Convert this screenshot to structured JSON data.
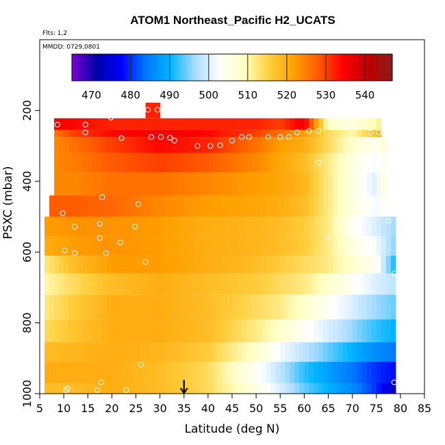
{
  "chart_data": {
    "type": "heatmap",
    "title": "ATOM1 Northeast_Pacific H2_UCATS",
    "flights_note": "Flts: 1,2",
    "date_note": "MMDD: 0729,0801",
    "xlabel": "Latitude (deg N)",
    "ylabel": "PSXC (mbar)",
    "xlim": [
      5,
      85
    ],
    "ylim": [
      1000,
      0
    ],
    "y_reversed": true,
    "xticks": [
      5,
      10,
      15,
      20,
      25,
      30,
      35,
      40,
      45,
      50,
      55,
      60,
      65,
      70,
      75,
      80,
      85
    ],
    "yticks": [
      200,
      400,
      600,
      800,
      1000
    ],
    "colorbar": {
      "range": [
        465,
        547
      ],
      "ticks": [
        470,
        480,
        490,
        500,
        510,
        520,
        530,
        540
      ],
      "colors": [
        "#7b00d4",
        "#0000a8",
        "#0000ff",
        "#0078ff",
        "#00b4ff",
        "#aadcff",
        "#ffffff",
        "#ffffc0",
        "#ffd040",
        "#ffa000",
        "#ff5a00",
        "#ff0000",
        "#c00000",
        "#8b1a1a"
      ]
    },
    "arrow_latitude": 35,
    "bands": [
      {
        "p": [
          1000,
          970
        ],
        "lat": [
          6,
          12,
          20,
          30,
          40,
          50,
          55,
          60,
          65,
          70,
          75,
          79
        ],
        "v": [
          518,
          518,
          520,
          518,
          514,
          506,
          500,
          494,
          490,
          486,
          480,
          472
        ]
      },
      {
        "p": [
          970,
          910
        ],
        "lat": [
          6,
          12,
          20,
          30,
          40,
          50,
          55,
          60,
          65,
          70,
          75,
          79
        ],
        "v": [
          520,
          520,
          520,
          518,
          514,
          504,
          498,
          492,
          488,
          484,
          480,
          478
        ]
      },
      {
        "p": [
          910,
          855
        ],
        "lat": [
          6,
          12,
          20,
          30,
          40,
          50,
          55,
          60,
          65,
          70,
          75,
          79
        ],
        "v": [
          518,
          519,
          520,
          519,
          516,
          508,
          502,
          498,
          494,
          490,
          486,
          484
        ]
      },
      {
        "p": [
          855,
          790
        ],
        "lat": [
          6,
          12,
          20,
          30,
          40,
          50,
          55,
          60,
          65,
          70,
          75,
          79
        ],
        "v": [
          514,
          517,
          520,
          520,
          518,
          512,
          508,
          504,
          500,
          496,
          492,
          490
        ]
      },
      {
        "p": [
          790,
          720
        ],
        "lat": [
          6,
          12,
          20,
          30,
          40,
          50,
          55,
          60,
          65,
          70,
          75,
          79
        ],
        "v": [
          512,
          516,
          520,
          520,
          518,
          514,
          512,
          508,
          504,
          500,
          496,
          494
        ]
      },
      {
        "p": [
          720,
          660
        ],
        "lat": [
          6,
          12,
          20,
          30,
          40,
          50,
          55,
          60,
          65,
          70,
          75,
          79
        ],
        "v": [
          510,
          514,
          518,
          520,
          518,
          516,
          514,
          512,
          508,
          504,
          500,
          498
        ]
      },
      {
        "p": [
          660,
          610
        ],
        "lat": [
          6,
          12,
          20,
          30,
          40,
          50,
          55,
          60,
          65,
          70,
          75,
          79
        ],
        "v": [
          512,
          518,
          522,
          522,
          520,
          518,
          516,
          514,
          512,
          508,
          504,
          490
        ]
      },
      {
        "p": [
          610,
          555
        ],
        "lat": [
          6,
          12,
          20,
          30,
          40,
          50,
          55,
          60,
          65,
          70,
          75,
          79
        ],
        "v": [
          520,
          522,
          523,
          522,
          520,
          519,
          518,
          516,
          512,
          506,
          502,
          495
        ]
      },
      {
        "p": [
          555,
          500
        ],
        "lat": [
          6,
          12,
          20,
          30,
          40,
          50,
          55,
          60,
          65,
          70,
          75,
          79
        ],
        "v": [
          522,
          523,
          523,
          522,
          520,
          519,
          518,
          516,
          512,
          504,
          500,
          496
        ]
      },
      {
        "p": [
          500,
          440
        ],
        "lat": [
          7,
          12,
          20,
          30,
          40,
          50,
          55,
          60,
          65,
          70,
          75,
          78
        ],
        "v": [
          528,
          528,
          527,
          524,
          522,
          521,
          520,
          518,
          512,
          506,
          502,
          504
        ]
      },
      {
        "p": [
          440,
          375
        ],
        "lat": [
          8,
          12,
          20,
          30,
          40,
          50,
          55,
          60,
          65,
          70,
          75,
          77
        ],
        "v": [
          524,
          524,
          526,
          526,
          524,
          522,
          521,
          519,
          512,
          506,
          500,
          508
        ]
      },
      {
        "p": [
          375,
          320
        ],
        "lat": [
          8,
          12,
          20,
          30,
          40,
          50,
          55,
          60,
          65,
          70,
          75,
          77
        ],
        "v": [
          524,
          525,
          528,
          530,
          528,
          524,
          521,
          518,
          512,
          506,
          502,
          505
        ]
      },
      {
        "p": [
          320,
          275
        ],
        "lat": [
          8,
          12,
          20,
          30,
          40,
          50,
          55,
          60,
          65,
          70,
          75,
          77
        ],
        "v": [
          524,
          526,
          530,
          534,
          532,
          526,
          522,
          520,
          514,
          508,
          504,
          508
        ]
      },
      {
        "p": [
          275,
          255
        ],
        "lat": [
          8,
          12,
          20,
          30,
          40,
          50,
          55,
          60,
          65,
          70,
          75,
          76
        ],
        "v": [
          526,
          530,
          534,
          536,
          534,
          530,
          526,
          522,
          514,
          510,
          518,
          520
        ]
      },
      {
        "p": [
          255,
          222
        ],
        "lat": [
          8,
          12,
          20,
          30,
          40,
          50,
          55,
          60,
          65,
          70,
          75,
          76
        ],
        "v": [
          536,
          534,
          532,
          532,
          532,
          532,
          530,
          536,
          508,
          506,
          510,
          512
        ]
      },
      {
        "p": [
          222,
          178
        ],
        "lat": [
          27,
          30
        ],
        "v": [
          532,
          532
        ]
      }
    ],
    "observation_points": [
      {
        "lat": 8.7,
        "p": 240
      },
      {
        "lat": 14.5,
        "p": 240
      },
      {
        "lat": 7.5,
        "p": 262
      },
      {
        "lat": 14.5,
        "p": 262
      },
      {
        "lat": 19.8,
        "p": 220
      },
      {
        "lat": 27.5,
        "p": 198
      },
      {
        "lat": 29.5,
        "p": 198
      },
      {
        "lat": 22,
        "p": 278
      },
      {
        "lat": 28.2,
        "p": 275
      },
      {
        "lat": 30.2,
        "p": 275
      },
      {
        "lat": 32.1,
        "p": 277
      },
      {
        "lat": 33,
        "p": 285
      },
      {
        "lat": 37.8,
        "p": 300
      },
      {
        "lat": 40.5,
        "p": 300
      },
      {
        "lat": 42.5,
        "p": 298
      },
      {
        "lat": 45,
        "p": 285
      },
      {
        "lat": 47,
        "p": 275
      },
      {
        "lat": 48.5,
        "p": 275
      },
      {
        "lat": 52.5,
        "p": 275
      },
      {
        "lat": 55,
        "p": 275
      },
      {
        "lat": 56.8,
        "p": 275
      },
      {
        "lat": 58.5,
        "p": 262
      },
      {
        "lat": 61,
        "p": 258
      },
      {
        "lat": 63,
        "p": 258
      },
      {
        "lat": 73.8,
        "p": 262
      },
      {
        "lat": 75.5,
        "p": 262
      },
      {
        "lat": 63,
        "p": 347
      },
      {
        "lat": 72.5,
        "p": 340
      },
      {
        "lat": 74.2,
        "p": 340
      },
      {
        "lat": 18,
        "p": 445
      },
      {
        "lat": 25.5,
        "p": 465
      },
      {
        "lat": 9.8,
        "p": 490
      },
      {
        "lat": 17.5,
        "p": 520
      },
      {
        "lat": 12.3,
        "p": 528
      },
      {
        "lat": 24.8,
        "p": 528
      },
      {
        "lat": 65,
        "p": 560
      },
      {
        "lat": 69.5,
        "p": 520
      },
      {
        "lat": 71.5,
        "p": 555
      },
      {
        "lat": 77.5,
        "p": 512
      },
      {
        "lat": 17.5,
        "p": 560
      },
      {
        "lat": 21.8,
        "p": 573
      },
      {
        "lat": 10.2,
        "p": 595
      },
      {
        "lat": 12.3,
        "p": 603
      },
      {
        "lat": 18.8,
        "p": 603
      },
      {
        "lat": 27,
        "p": 628
      },
      {
        "lat": 78.8,
        "p": 660
      },
      {
        "lat": 26,
        "p": 918
      },
      {
        "lat": 17.8,
        "p": 968
      },
      {
        "lat": 10.8,
        "p": 985
      },
      {
        "lat": 10.5,
        "p": 990
      },
      {
        "lat": 17,
        "p": 990
      },
      {
        "lat": 23,
        "p": 990
      },
      {
        "lat": 5.2,
        "p": 990
      },
      {
        "lat": 78.7,
        "p": 968
      }
    ]
  }
}
